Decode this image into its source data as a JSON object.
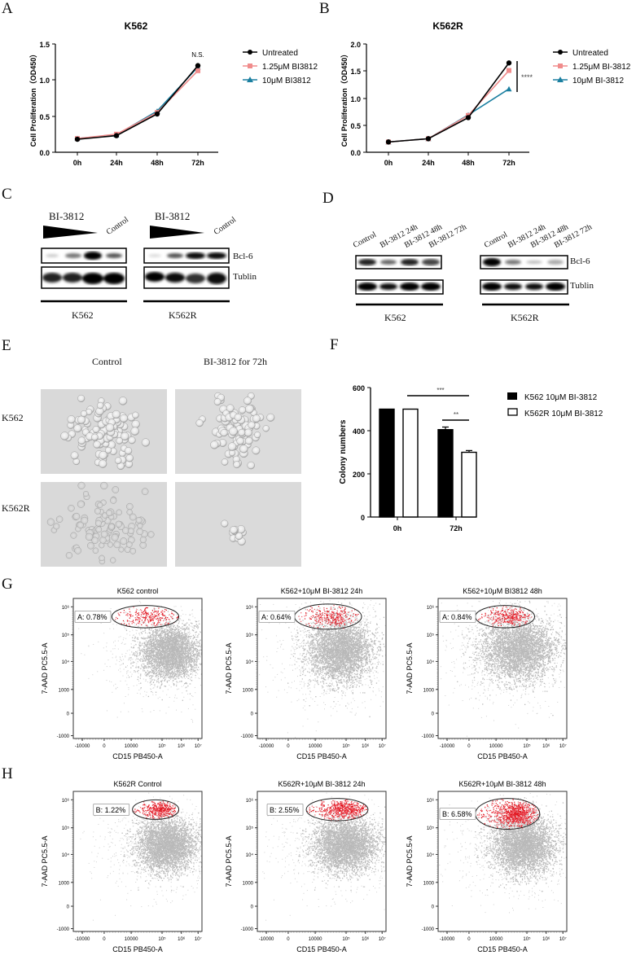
{
  "panels": {
    "A": "A",
    "B": "B",
    "C": "C",
    "D": "D",
    "E": "E",
    "F": "F",
    "G": "G",
    "H": "H"
  },
  "chart_data": [
    {
      "id": "A",
      "type": "line",
      "title": "K562",
      "xlabel": "",
      "ylabel": "Cell Proliferation（OD450）",
      "categories": [
        "0h",
        "24h",
        "48h",
        "72h"
      ],
      "yticks": [
        "0.0",
        "0.5",
        "1.0",
        "1.5"
      ],
      "ylim": [
        0,
        1.5
      ],
      "series": [
        {
          "name": "Untreated",
          "color": "#000000",
          "marker": "circle",
          "values": [
            0.18,
            0.23,
            0.53,
            1.2
          ]
        },
        {
          "name": "1.25μM BI3812",
          "color": "#f08c8c",
          "marker": "square",
          "values": [
            0.19,
            0.25,
            0.55,
            1.13
          ]
        },
        {
          "name": "10μM BI3812",
          "color": "#1a7fa0",
          "marker": "triangle",
          "values": [
            0.19,
            0.24,
            0.57,
            1.18
          ]
        }
      ],
      "annotation": "N.S.",
      "legend_position": "right"
    },
    {
      "id": "B",
      "type": "line",
      "title": "K562R",
      "xlabel": "",
      "ylabel": "Cell Proliferation（OD450）",
      "categories": [
        "0h",
        "24h",
        "48h",
        "72h"
      ],
      "yticks": [
        "0.0",
        "0.5",
        "1.0",
        "1.5",
        "2.0"
      ],
      "ylim": [
        0,
        2.0
      ],
      "series": [
        {
          "name": "Untreated",
          "color": "#000000",
          "marker": "circle",
          "values": [
            0.19,
            0.25,
            0.64,
            1.65
          ]
        },
        {
          "name": "1.25μM BI-3812",
          "color": "#f08c8c",
          "marker": "square",
          "values": [
            0.19,
            0.25,
            0.68,
            1.51
          ]
        },
        {
          "name": "10μM BI-3812",
          "color": "#1a7fa0",
          "marker": "triangle",
          "values": [
            0.19,
            0.25,
            0.69,
            1.17
          ]
        }
      ],
      "annotation": "****",
      "legend_position": "right"
    },
    {
      "id": "F",
      "type": "bar",
      "title": "",
      "xlabel": "",
      "ylabel": "Colony numbers",
      "categories": [
        "0h",
        "72h"
      ],
      "yticks": [
        "0",
        "200",
        "400",
        "600"
      ],
      "ylim": [
        0,
        600
      ],
      "series": [
        {
          "name": "K562 10μM BI-3812",
          "fill": "#000000",
          "values": [
            500,
            405
          ],
          "errors": [
            0,
            12
          ]
        },
        {
          "name": "K562R 10μM BI-3812",
          "fill": "#ffffff",
          "values": [
            500,
            300
          ],
          "errors": [
            0,
            8
          ]
        }
      ],
      "annotations": [
        {
          "text": "***",
          "between": "0h K562R vs 72h K562R"
        },
        {
          "text": "**",
          "between": "72h K562 vs 72h K562R"
        }
      ],
      "legend_position": "right"
    }
  ],
  "blot_C": {
    "treatment_label": "BI-3812",
    "control_label": "Control",
    "rows": [
      "Bcl-6",
      "Tublin"
    ],
    "groups": [
      "K562",
      "K562R"
    ]
  },
  "blot_D": {
    "lanes": [
      "Control",
      "BI-3812 24h",
      "BI-3812 48h",
      "BI-3812 72h"
    ],
    "rows": [
      "Bcl-6",
      "Tublin"
    ],
    "groups": [
      "K562",
      "K562R"
    ]
  },
  "micrographs_E": {
    "columns": [
      "Control",
      "BI-3812 for 72h"
    ],
    "rows": [
      "K562",
      "K562R"
    ]
  },
  "flow": {
    "ylabel": "7-AAD PC5.5-A",
    "xlabel": "CD15 PB450-A",
    "xticks": [
      "-10000",
      "0",
      "10000",
      "10⁵",
      "10⁶",
      "10⁷"
    ],
    "yticks": [
      "10⁶",
      "10⁵",
      "10⁴",
      "1000",
      "0",
      "-1000"
    ],
    "G": [
      {
        "title": "K562 control",
        "gate": "A: 0.78%"
      },
      {
        "title": "K562+10μM BI-3812 24h",
        "gate": "A: 0.64%"
      },
      {
        "title": "K562+10μM BI3812 48h",
        "gate": "A: 0.84%"
      }
    ],
    "H": [
      {
        "title": "K562R Control",
        "gate": "B: 1.22%"
      },
      {
        "title": "K562R+10μM BI-3812 24h",
        "gate": "B: 2.55%"
      },
      {
        "title": "K562R+10μM BI-3812 48h",
        "gate": "B: 6.58%"
      }
    ]
  }
}
